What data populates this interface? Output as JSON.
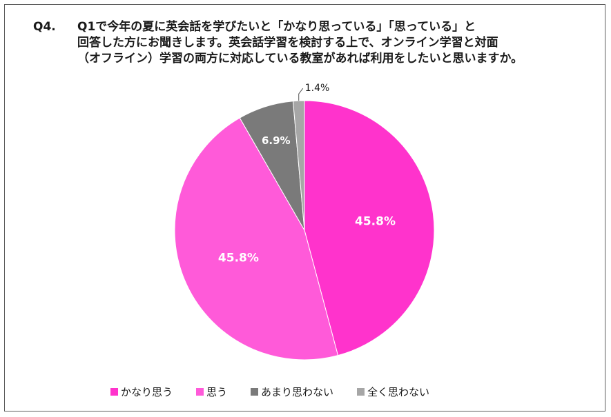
{
  "question": {
    "number": "Q4.",
    "lines": [
      "Q1で今年の夏に英会話を学びたいと「かなり思っている」「思っている」と",
      "回答した方にお聞きします。英会話学習を検討する上で、オンライン学習と対面",
      "（オフライン）学習の両方に対応している教室があれば利用をしたいと思いますか。"
    ]
  },
  "chart_data": {
    "type": "pie",
    "title": "",
    "start_angle_deg": 0,
    "direction": "clockwise",
    "legend_position": "bottom",
    "categories": [
      "かなり思う",
      "思う",
      "あまり思わない",
      "全く思わない"
    ],
    "values": [
      45.8,
      45.8,
      6.9,
      1.4
    ],
    "labels": [
      "45.8%",
      "45.8%",
      "6.9%",
      "1.4%"
    ],
    "colors": [
      "#ff33cc",
      "#ff5ad9",
      "#7a7a7a",
      "#a6a6a6"
    ],
    "label_colors": [
      "#ffffff",
      "#ffffff",
      "#ffffff",
      "#1a1a1a"
    ],
    "label_placement": [
      "inside",
      "inside",
      "inside",
      "outside"
    ]
  }
}
